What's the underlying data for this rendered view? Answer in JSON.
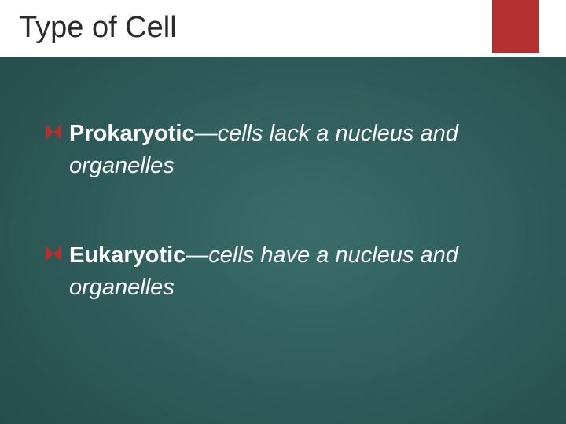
{
  "slide": {
    "title": "Type of Cell",
    "title_fontsize": 38,
    "title_color": "#2b2b2b",
    "title_bar_bg": "#ffffff",
    "accent_color": "#b33030",
    "body_bg_gradient": [
      "#3a6d6a",
      "#2d5a58",
      "#1f4544",
      "#163534"
    ],
    "body_text_color": "#ffffff",
    "body_fontsize": 29,
    "bullets": [
      {
        "bold": "Prokaryotic",
        "rest": "—cells lack a nucleus and organelles"
      },
      {
        "bold": "Eukaryotic",
        "rest": "—cells have a nucleus and organelles"
      }
    ],
    "bullet_marker_shape": "diamond",
    "bullet_marker_color": "#b33030"
  }
}
